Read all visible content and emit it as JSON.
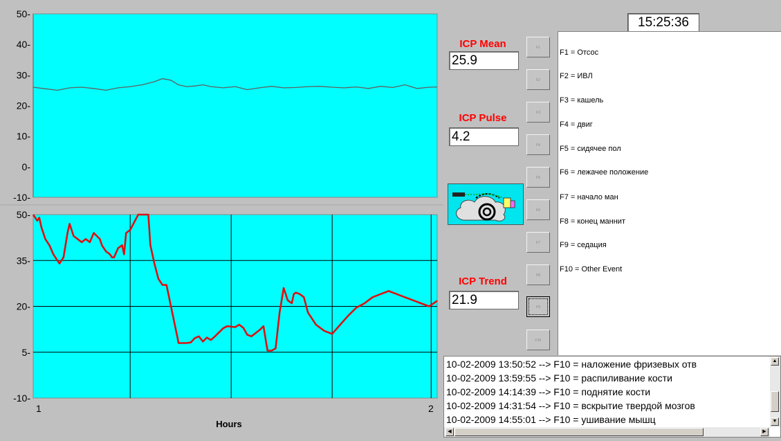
{
  "clock": "15:25:36",
  "params": {
    "icp_mean": {
      "label": "ICP Mean",
      "value": "25.9"
    },
    "icp_pulse": {
      "label": "ICP Pulse",
      "value": "4.2"
    },
    "icp_trend": {
      "label": "ICP Trend",
      "value": "21.9"
    }
  },
  "fkeys": [
    "F1",
    "F2",
    "F3",
    "F4",
    "F5",
    "F6",
    "F7",
    "F8",
    "F9",
    "F10"
  ],
  "legend": [
    "F1 = Отсос",
    "F2 = ИВЛ",
    "F3 = кашель",
    "F4 = двиг",
    "F5 = сидячее пол",
    "F6 = лежачее положение",
    "F7 = начало ман",
    "F8 = конец маннит",
    "F9 = седация",
    "F10 = Other Event"
  ],
  "log": [
    "10-02-2009 13:50:52 --> F10 =  наложение фризевых отв",
    "10-02-2009 13:59:55 --> F10 =  распиливание кости",
    "10-02-2009 14:14:39 --> F10 =  поднятие кости",
    "10-02-2009 14:31:54 --> F10 =  вскрытие твердой мозгов",
    "10-02-2009 14:55:01 --> F10 =  ушивание мышц"
  ],
  "colors": {
    "plot_bg": "#00ffff",
    "top_trace": "#606060",
    "bottom_trace": "#dd1111",
    "label_red": "#ff0000"
  },
  "chart_data": [
    {
      "type": "line",
      "ylim": [
        -10,
        50
      ],
      "yticks": [
        "50-",
        "40-",
        "30-",
        "20-",
        "10-",
        "0-",
        "-10-"
      ],
      "grid": false,
      "series": [
        {
          "x": [
            0,
            0.03,
            0.06,
            0.09,
            0.12,
            0.15,
            0.18,
            0.21,
            0.24,
            0.27,
            0.3,
            0.32,
            0.34,
            0.36,
            0.38,
            0.4,
            0.42,
            0.44,
            0.47,
            0.5,
            0.53,
            0.56,
            0.59,
            0.62,
            0.65,
            0.68,
            0.71,
            0.74,
            0.77,
            0.8,
            0.83,
            0.86,
            0.89,
            0.92,
            0.95,
            0.98,
            1.0
          ],
          "values": [
            26,
            25.5,
            25,
            25.8,
            26,
            25.6,
            25,
            25.8,
            26.2,
            26.8,
            27.8,
            28.8,
            28.3,
            26.8,
            26.2,
            26.4,
            26.8,
            26.2,
            25.8,
            26.2,
            25.2,
            25.8,
            26.3,
            25.8,
            25.9,
            26.2,
            26.3,
            26,
            25.8,
            26.1,
            25.6,
            26.3,
            25.9,
            26.8,
            25.6,
            26,
            26.1
          ]
        }
      ]
    },
    {
      "type": "line",
      "ylim": [
        -10,
        50
      ],
      "yticks": [
        "50-",
        "35-",
        "20-",
        "5-",
        "-10-"
      ],
      "xticks": [
        "1",
        "2"
      ],
      "xlabel": "Hours",
      "grid": true,
      "series": [
        {
          "x": [
            0,
            0.01,
            0.015,
            0.02,
            0.03,
            0.04,
            0.05,
            0.06,
            0.065,
            0.075,
            0.085,
            0.09,
            0.1,
            0.11,
            0.12,
            0.13,
            0.14,
            0.15,
            0.165,
            0.17,
            0.18,
            0.19,
            0.195,
            0.2,
            0.21,
            0.22,
            0.225,
            0.23,
            0.24,
            0.26,
            0.28,
            0.285,
            0.29,
            0.3,
            0.31,
            0.32,
            0.33,
            0.36,
            0.38,
            0.39,
            0.4,
            0.41,
            0.42,
            0.43,
            0.44,
            0.45,
            0.47,
            0.48,
            0.5,
            0.51,
            0.52,
            0.53,
            0.54,
            0.55,
            0.56,
            0.57,
            0.58,
            0.59,
            0.6,
            0.61,
            0.62,
            0.63,
            0.64,
            0.645,
            0.65,
            0.66,
            0.67,
            0.68,
            0.7,
            0.72,
            0.74,
            0.76,
            0.78,
            0.8,
            0.82,
            0.84,
            0.86,
            0.88,
            0.9,
            0.92,
            0.94,
            0.96,
            0.98,
            1.0
          ],
          "values": [
            50,
            48,
            49,
            46,
            42,
            40,
            37,
            35,
            34,
            36,
            44,
            47,
            43,
            42,
            41,
            42,
            41,
            44,
            42,
            40,
            38,
            37,
            36,
            36,
            39,
            40,
            37,
            44,
            45,
            50,
            52,
            51,
            40,
            34,
            29,
            27,
            27,
            8,
            8,
            8.2,
            9.6,
            10.2,
            8.5,
            9.8,
            9,
            10.2,
            12.8,
            13.5,
            13.2,
            14,
            13,
            10.7,
            10.2,
            11.2,
            12.2,
            13.5,
            5.5,
            5.5,
            6.2,
            18,
            26,
            22,
            21,
            24,
            24.5,
            24,
            23,
            18,
            14,
            12,
            11,
            14,
            17,
            19.6,
            21,
            23,
            24,
            25,
            24,
            23,
            22,
            21,
            20,
            21.8
          ]
        }
      ]
    }
  ]
}
